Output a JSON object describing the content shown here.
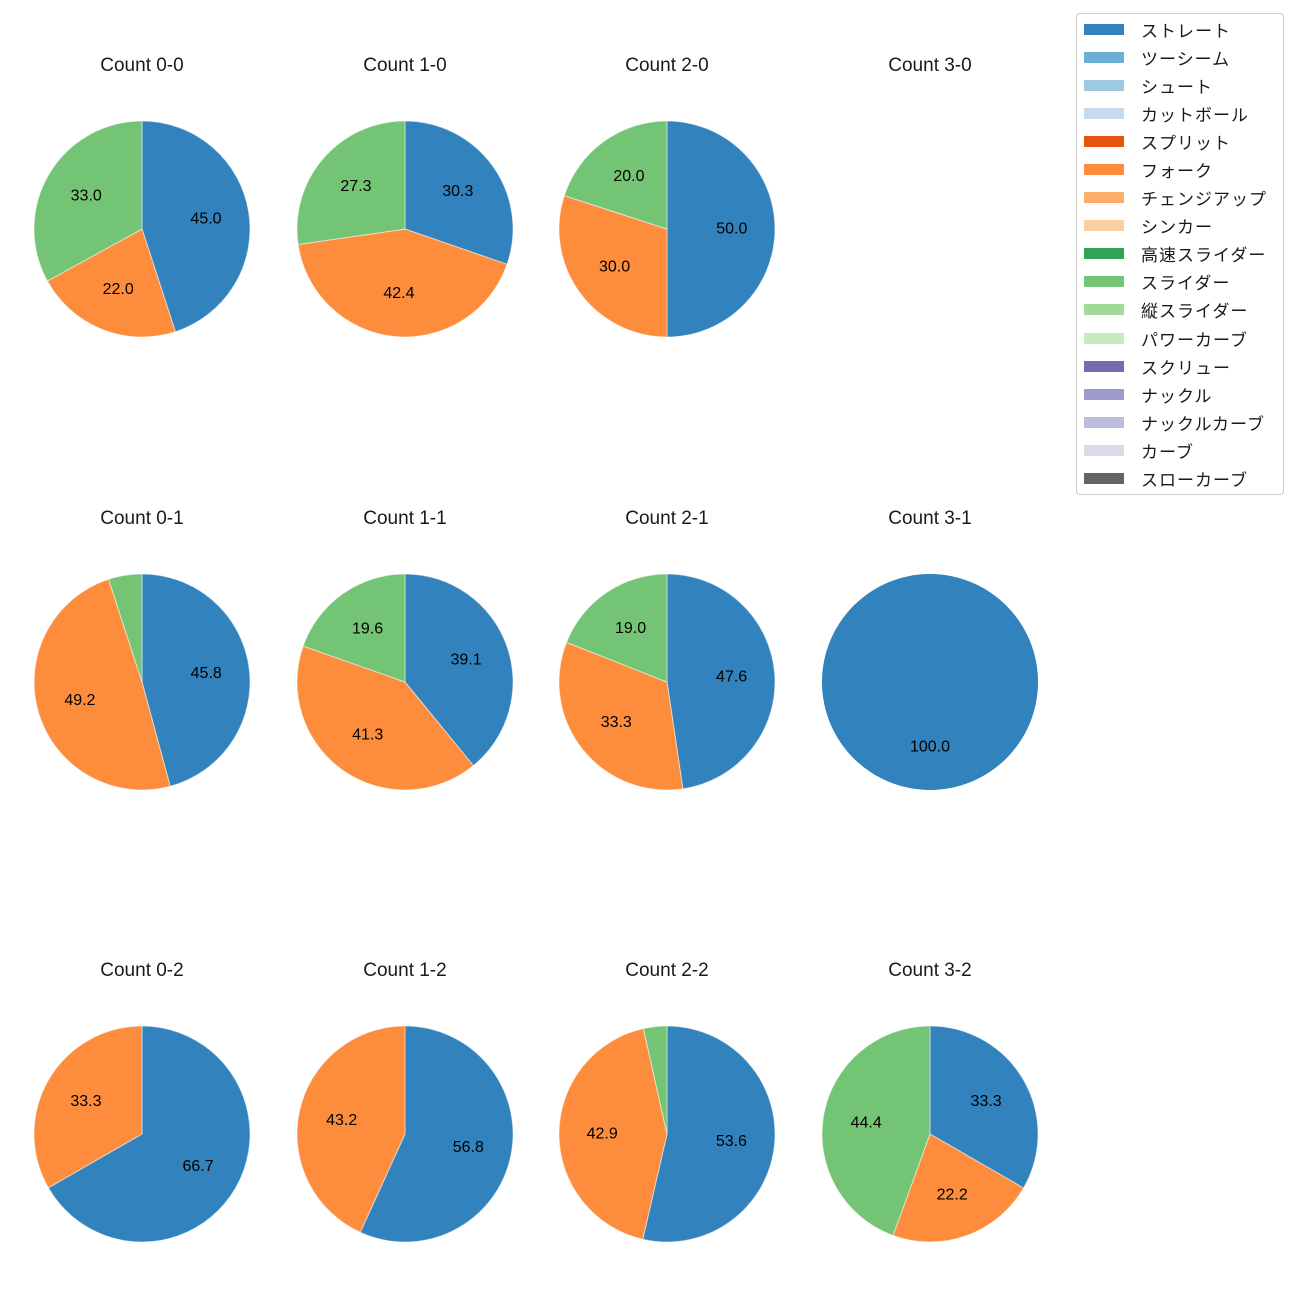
{
  "figure": {
    "background": "#ffffff"
  },
  "legend": {
    "items": [
      {
        "key": "straight",
        "label": "ストレート",
        "color": "#3182bd"
      },
      {
        "key": "two-seam",
        "label": "ツーシーム",
        "color": "#6baed6"
      },
      {
        "key": "shuuto",
        "label": "シュート",
        "color": "#9ecae1"
      },
      {
        "key": "cut-ball",
        "label": "カットボール",
        "color": "#c6dbef"
      },
      {
        "key": "split",
        "label": "スプリット",
        "color": "#e6550d"
      },
      {
        "key": "fork",
        "label": "フォーク",
        "color": "#fd8d3c"
      },
      {
        "key": "changeup",
        "label": "チェンジアップ",
        "color": "#fdae6b"
      },
      {
        "key": "sinker",
        "label": "シンカー",
        "color": "#fdd0a2"
      },
      {
        "key": "fast-slider",
        "label": "高速スライダー",
        "color": "#31a354"
      },
      {
        "key": "slider",
        "label": "スライダー",
        "color": "#74c476"
      },
      {
        "key": "vertical-slider",
        "label": "縦スライダー",
        "color": "#a1d99b"
      },
      {
        "key": "power-curve",
        "label": "パワーカーブ",
        "color": "#c7e9c0"
      },
      {
        "key": "screw",
        "label": "スクリュー",
        "color": "#756bb1"
      },
      {
        "key": "knuckle",
        "label": "ナックル",
        "color": "#9e9ac8"
      },
      {
        "key": "knuckle-curve",
        "label": "ナックルカーブ",
        "color": "#bcbddc"
      },
      {
        "key": "curve",
        "label": "カーブ",
        "color": "#dadaeb"
      },
      {
        "key": "slow-curve",
        "label": "スローカーブ",
        "color": "#636363"
      }
    ]
  },
  "chart_data": [
    {
      "type": "pie",
      "title": "Count 0-0",
      "start_angle": 90,
      "counterclockwise": false,
      "slices": [
        {
          "key": "straight",
          "label": "ストレート",
          "value": 45.0,
          "pct_label": "45.0",
          "color": "#3182bd"
        },
        {
          "key": "fork",
          "label": "フォーク",
          "value": 22.0,
          "pct_label": "22.0",
          "color": "#fd8d3c"
        },
        {
          "key": "slider",
          "label": "スライダー",
          "value": 33.0,
          "pct_label": "33.0",
          "color": "#74c476"
        }
      ]
    },
    {
      "type": "pie",
      "title": "Count 1-0",
      "start_angle": 90,
      "counterclockwise": false,
      "slices": [
        {
          "key": "straight",
          "label": "ストレート",
          "value": 30.3,
          "pct_label": "30.3",
          "color": "#3182bd"
        },
        {
          "key": "fork",
          "label": "フォーク",
          "value": 42.4,
          "pct_label": "42.4",
          "color": "#fd8d3c"
        },
        {
          "key": "slider",
          "label": "スライダー",
          "value": 27.3,
          "pct_label": "27.3",
          "color": "#74c476"
        }
      ]
    },
    {
      "type": "pie",
      "title": "Count 2-0",
      "start_angle": 90,
      "counterclockwise": false,
      "slices": [
        {
          "key": "straight",
          "label": "ストレート",
          "value": 50.0,
          "pct_label": "50.0",
          "color": "#3182bd"
        },
        {
          "key": "fork",
          "label": "フォーク",
          "value": 30.0,
          "pct_label": "30.0",
          "color": "#fd8d3c"
        },
        {
          "key": "slider",
          "label": "スライダー",
          "value": 20.0,
          "pct_label": "20.0",
          "color": "#74c476"
        }
      ]
    },
    {
      "type": "pie",
      "title": "Count 3-0",
      "start_angle": 90,
      "counterclockwise": false,
      "slices": []
    },
    {
      "type": "pie",
      "title": "Count 0-1",
      "start_angle": 90,
      "counterclockwise": false,
      "slices": [
        {
          "key": "straight",
          "label": "ストレート",
          "value": 45.8,
          "pct_label": "45.8",
          "color": "#3182bd"
        },
        {
          "key": "fork",
          "label": "フォーク",
          "value": 49.2,
          "pct_label": "49.2",
          "color": "#fd8d3c"
        },
        {
          "key": "slider",
          "label": "スライダー",
          "value": 5.0,
          "pct_label": "",
          "color": "#74c476"
        }
      ]
    },
    {
      "type": "pie",
      "title": "Count 1-1",
      "start_angle": 90,
      "counterclockwise": false,
      "slices": [
        {
          "key": "straight",
          "label": "ストレート",
          "value": 39.1,
          "pct_label": "39.1",
          "color": "#3182bd"
        },
        {
          "key": "fork",
          "label": "フォーク",
          "value": 41.3,
          "pct_label": "41.3",
          "color": "#fd8d3c"
        },
        {
          "key": "slider",
          "label": "スライダー",
          "value": 19.6,
          "pct_label": "19.6",
          "color": "#74c476"
        }
      ]
    },
    {
      "type": "pie",
      "title": "Count 2-1",
      "start_angle": 90,
      "counterclockwise": false,
      "slices": [
        {
          "key": "straight",
          "label": "ストレート",
          "value": 47.6,
          "pct_label": "47.6",
          "color": "#3182bd"
        },
        {
          "key": "fork",
          "label": "フォーク",
          "value": 33.3,
          "pct_label": "33.3",
          "color": "#fd8d3c"
        },
        {
          "key": "slider",
          "label": "スライダー",
          "value": 19.0,
          "pct_label": "19.0",
          "color": "#74c476"
        }
      ]
    },
    {
      "type": "pie",
      "title": "Count 3-1",
      "start_angle": 90,
      "counterclockwise": false,
      "slices": [
        {
          "key": "straight",
          "label": "ストレート",
          "value": 100.0,
          "pct_label": "100.0",
          "color": "#3182bd"
        }
      ]
    },
    {
      "type": "pie",
      "title": "Count 0-2",
      "start_angle": 90,
      "counterclockwise": false,
      "slices": [
        {
          "key": "straight",
          "label": "ストレート",
          "value": 66.7,
          "pct_label": "66.7",
          "color": "#3182bd"
        },
        {
          "key": "fork",
          "label": "フォーク",
          "value": 33.3,
          "pct_label": "33.3",
          "color": "#fd8d3c"
        }
      ]
    },
    {
      "type": "pie",
      "title": "Count 1-2",
      "start_angle": 90,
      "counterclockwise": false,
      "slices": [
        {
          "key": "straight",
          "label": "ストレート",
          "value": 56.8,
          "pct_label": "56.8",
          "color": "#3182bd"
        },
        {
          "key": "fork",
          "label": "フォーク",
          "value": 43.2,
          "pct_label": "43.2",
          "color": "#fd8d3c"
        }
      ]
    },
    {
      "type": "pie",
      "title": "Count 2-2",
      "start_angle": 90,
      "counterclockwise": false,
      "slices": [
        {
          "key": "straight",
          "label": "ストレート",
          "value": 53.6,
          "pct_label": "53.6",
          "color": "#3182bd"
        },
        {
          "key": "fork",
          "label": "フォーク",
          "value": 42.9,
          "pct_label": "42.9",
          "color": "#fd8d3c"
        },
        {
          "key": "slider",
          "label": "スライダー",
          "value": 3.5,
          "pct_label": "",
          "color": "#74c476"
        }
      ]
    },
    {
      "type": "pie",
      "title": "Count 3-2",
      "start_angle": 90,
      "counterclockwise": false,
      "slices": [
        {
          "key": "straight",
          "label": "ストレート",
          "value": 33.3,
          "pct_label": "33.3",
          "color": "#3182bd"
        },
        {
          "key": "fork",
          "label": "フォーク",
          "value": 22.2,
          "pct_label": "22.2",
          "color": "#fd8d3c"
        },
        {
          "key": "slider",
          "label": "スライダー",
          "value": 44.4,
          "pct_label": "44.4",
          "color": "#74c476"
        }
      ]
    }
  ]
}
